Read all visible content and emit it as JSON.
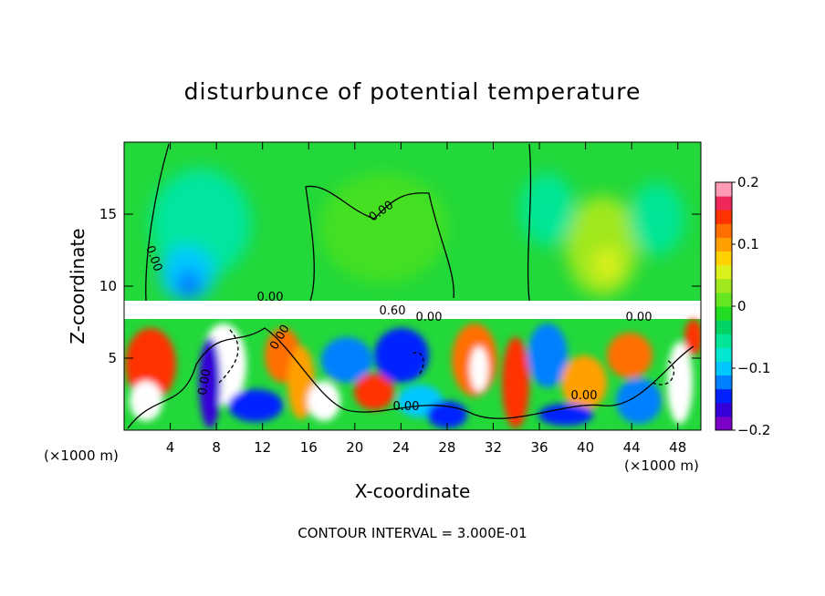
{
  "chart_data": {
    "type": "heatmap",
    "title": "disturbunce of potential temperature",
    "xlabel": "X-coordinate",
    "ylabel": "Z-coordinate",
    "x_unit_label": "(×1000 m)",
    "x_unit_label_right": "(×1000 m)",
    "x_ticks": [
      4,
      8,
      12,
      16,
      20,
      24,
      28,
      32,
      36,
      40,
      44,
      48
    ],
    "y_ticks": [
      5,
      10,
      15
    ],
    "xlim": [
      0,
      50
    ],
    "ylim": [
      0,
      20
    ],
    "colorbar": {
      "ticks": [
        "0.2",
        "0.1",
        "0",
        "−0.1",
        "−0.2"
      ],
      "range": [
        -0.2,
        0.2
      ],
      "colors": [
        "#7a00c8",
        "#3400d8",
        "#0022ff",
        "#0080ff",
        "#00c8ff",
        "#00e6d0",
        "#00e696",
        "#00d264",
        "#22dd22",
        "#66e622",
        "#a0e81e",
        "#dcf01e",
        "#ffd200",
        "#ffa000",
        "#ff6e00",
        "#ff3200",
        "#f0285a",
        "#ff9bb4"
      ]
    },
    "contour_labels": [
      "0.00",
      "0.60"
    ],
    "contour_interval_text": "CONTOUR INTERVAL = 3.000E-01"
  }
}
